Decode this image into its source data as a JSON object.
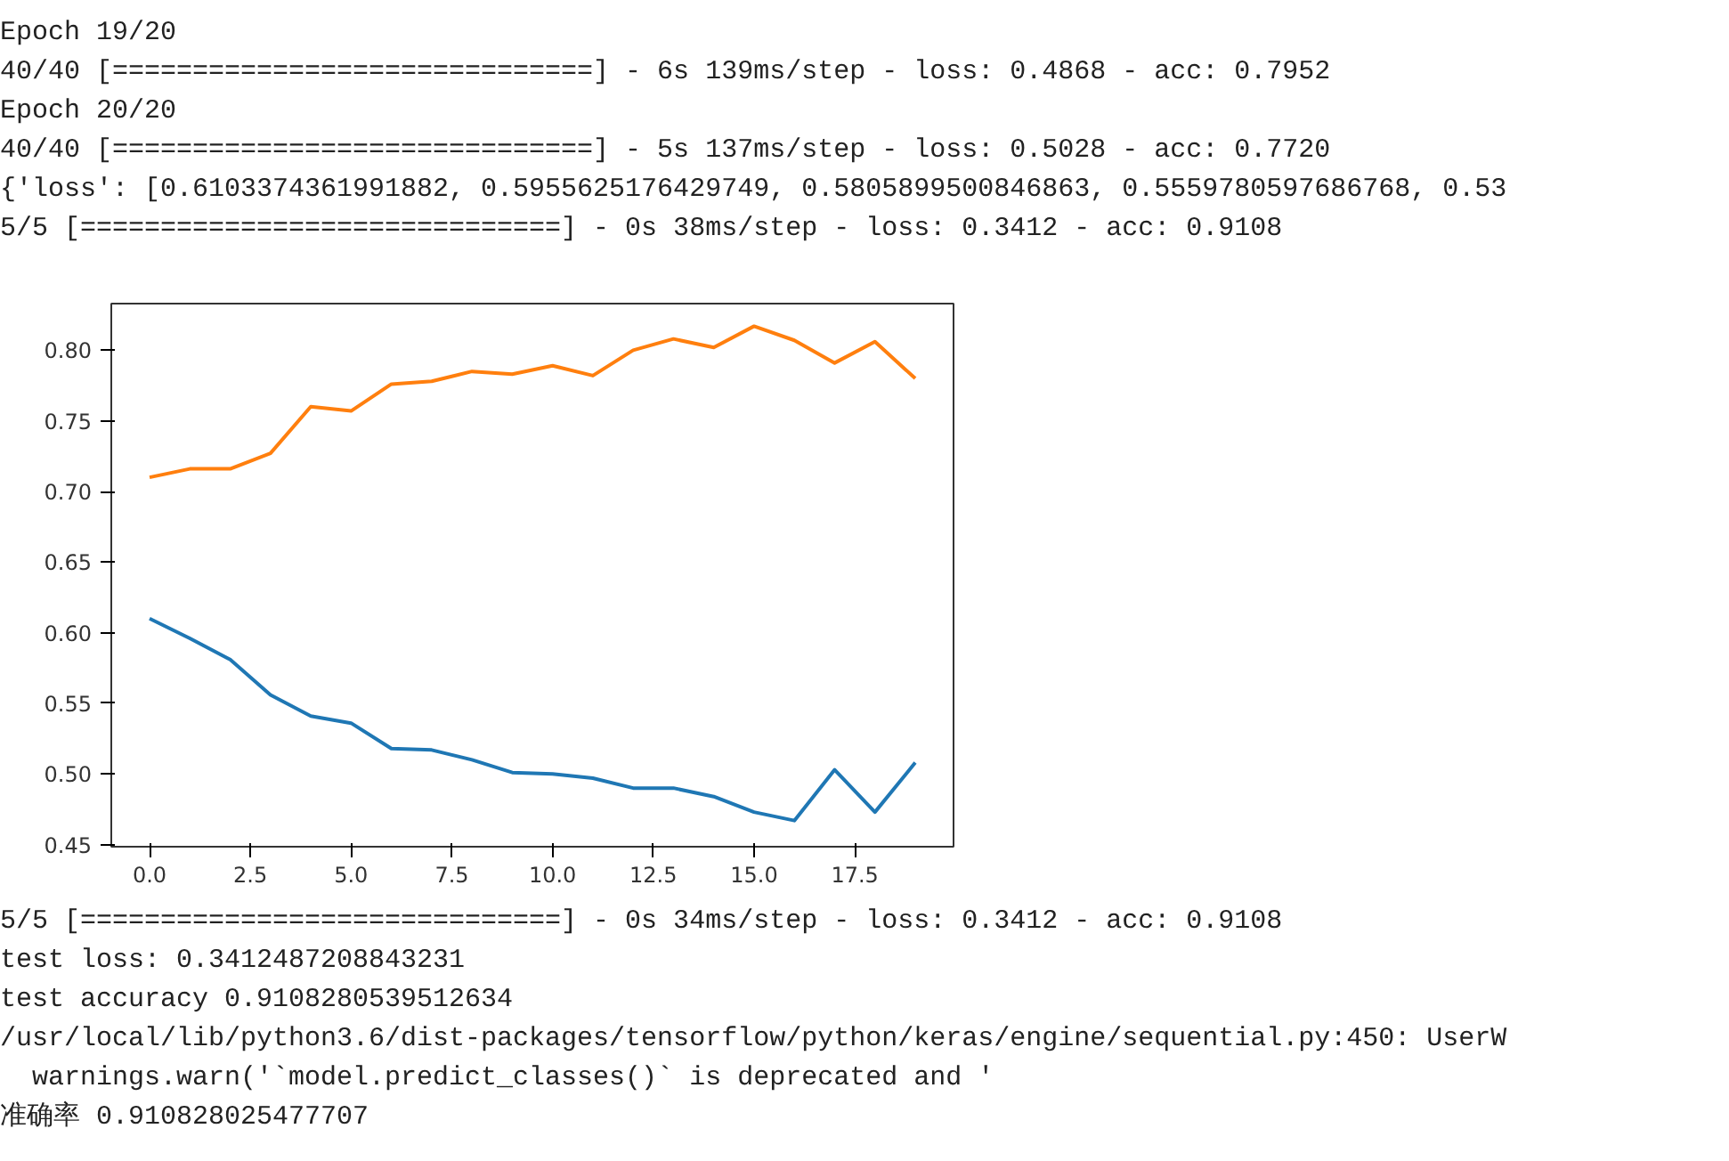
{
  "chart_data": {
    "type": "line",
    "x": [
      0,
      1,
      2,
      3,
      4,
      5,
      6,
      7,
      8,
      9,
      10,
      11,
      12,
      13,
      14,
      15,
      16,
      17,
      18,
      19
    ],
    "series": [
      {
        "color": "#1f77b4",
        "values": [
          0.61,
          0.596,
          0.581,
          0.556,
          0.541,
          0.536,
          0.518,
          0.517,
          0.51,
          0.501,
          0.5,
          0.497,
          0.49,
          0.49,
          0.484,
          0.473,
          0.467,
          0.503,
          0.473,
          0.508
        ]
      },
      {
        "color": "#ff7f0e",
        "values": [
          0.71,
          0.716,
          0.716,
          0.727,
          0.76,
          0.757,
          0.776,
          0.778,
          0.785,
          0.783,
          0.789,
          0.782,
          0.8,
          0.808,
          0.802,
          0.817,
          0.807,
          0.791,
          0.806,
          0.78
        ]
      }
    ],
    "xlim": [
      -0.95,
      19.95
    ],
    "xticks": [
      {
        "value": 0,
        "label": "0.0"
      },
      {
        "value": 2.5,
        "label": "2.5"
      },
      {
        "value": 5,
        "label": "5.0"
      },
      {
        "value": 7.5,
        "label": "7.5"
      },
      {
        "value": 10,
        "label": "10.0"
      },
      {
        "value": 12.5,
        "label": "12.5"
      },
      {
        "value": 15,
        "label": "15.0"
      },
      {
        "value": 17.5,
        "label": "17.5"
      }
    ],
    "ylim": [
      0.4485,
      0.833
    ],
    "yticks": [
      {
        "value": 0.45,
        "label": "0.45"
      },
      {
        "value": 0.5,
        "label": "0.50"
      },
      {
        "value": 0.55,
        "label": "0.55"
      },
      {
        "value": 0.6,
        "label": "0.60"
      },
      {
        "value": 0.65,
        "label": "0.65"
      },
      {
        "value": 0.7,
        "label": "0.70"
      },
      {
        "value": 0.75,
        "label": "0.75"
      },
      {
        "value": 0.8,
        "label": "0.80"
      }
    ],
    "grid": false,
    "marker": "none",
    "line_style": "solid",
    "annotations": [
      "Epoch 19/20",
      "40/40 [==============================] - 6s 139ms/step - loss: 0.4868 - acc: 0.7952",
      "Epoch 20/20",
      "40/40 [==============================] - 5s 137ms/step - loss: 0.5028 - acc: 0.7720",
      "{'loss': [0.6103374361991882, 0.5955625176429749, 0.5805899500846863, 0.5559780597686768, 0.53",
      "5/5 [==============================] - 0s 38ms/step - loss: 0.3412 - acc: 0.9108",
      "5/5 [==============================] - 0s 34ms/step - loss: 0.3412 - acc: 0.9108",
      "test loss: 0.3412487208843231",
      "test accuracy 0.9108280539512634",
      "/usr/local/lib/python3.6/dist-packages/tensorflow/python/keras/engine/sequential.py:450: UserW",
      "  warnings.warn('`model.predict_classes()` is deprecated and '",
      "准确率 0.910828025477707"
    ]
  }
}
